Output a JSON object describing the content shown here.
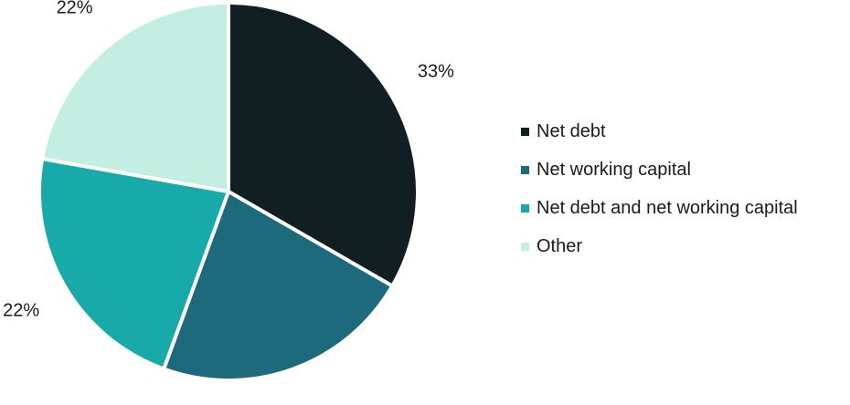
{
  "chart_data": {
    "type": "pie",
    "title": "",
    "slices": [
      {
        "name": "Net debt",
        "value": 33,
        "label": "33%",
        "color": "#111e22"
      },
      {
        "name": "Net working capital",
        "value": 22,
        "label": "22%",
        "color": "#1d6a7d"
      },
      {
        "name": "Net debt and net working capital",
        "value": 22,
        "label": "22%",
        "color": "#17aaa8"
      },
      {
        "name": "Other",
        "value": 22,
        "label": "22%",
        "color": "#c3eee1"
      }
    ],
    "legend_position": "right",
    "start_angle": "12 o'clock",
    "direction": "clockwise"
  }
}
